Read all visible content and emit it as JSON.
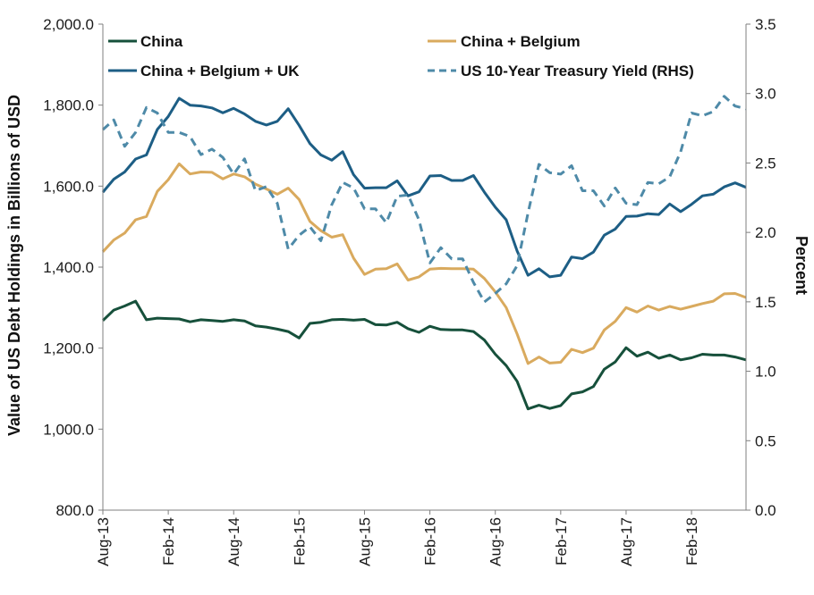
{
  "chart_data": {
    "type": "line",
    "x": [
      "Aug-13",
      "Sep-13",
      "Oct-13",
      "Nov-13",
      "Dec-13",
      "Jan-14",
      "Feb-14",
      "Mar-14",
      "Apr-14",
      "May-14",
      "Jun-14",
      "Jul-14",
      "Aug-14",
      "Sep-14",
      "Oct-14",
      "Nov-14",
      "Dec-14",
      "Jan-15",
      "Feb-15",
      "Mar-15",
      "Apr-15",
      "May-15",
      "Jun-15",
      "Jul-15",
      "Aug-15",
      "Sep-15",
      "Oct-15",
      "Nov-15",
      "Dec-15",
      "Jan-16",
      "Feb-16",
      "Mar-16",
      "Apr-16",
      "May-16",
      "Jun-16",
      "Jul-16",
      "Aug-16",
      "Sep-16",
      "Oct-16",
      "Nov-16",
      "Dec-16",
      "Jan-17",
      "Feb-17",
      "Mar-17",
      "Apr-17",
      "May-17",
      "Jun-17",
      "Jul-17",
      "Aug-17",
      "Sep-17",
      "Oct-17",
      "Nov-17",
      "Dec-17",
      "Jan-18",
      "Feb-18",
      "Mar-18",
      "Apr-18",
      "May-18",
      "Jun-18",
      "Jul-18"
    ],
    "x_tick_labels": [
      "Aug-13",
      "Feb-14",
      "Aug-14",
      "Feb-15",
      "Aug-15",
      "Feb-16",
      "Aug-16",
      "Feb-17",
      "Aug-17",
      "Feb-18"
    ],
    "ylabel": "Value of US Debt Holdings in Billions of USD",
    "y2label": "Percent",
    "ylim": [
      800,
      2000
    ],
    "y2lim": [
      0,
      3.5
    ],
    "y_tick_labels": [
      "800.0",
      "1,000.0",
      "1,200.0",
      "1,400.0",
      "1,600.0",
      "1,800.0",
      "2,000.0"
    ],
    "y2_tick_labels": [
      "0.0",
      "0.5",
      "1.0",
      "1.5",
      "2.0",
      "2.5",
      "3.0",
      "3.5"
    ],
    "grid": false,
    "legend_position": "top",
    "series": [
      {
        "name": "China",
        "axis": "left",
        "color": "#16503b",
        "dash": "solid",
        "values": [
          1268,
          1294,
          1304,
          1316,
          1270,
          1274,
          1273,
          1272,
          1265,
          1270,
          1268,
          1266,
          1270,
          1267,
          1255,
          1252,
          1247,
          1241,
          1225,
          1261,
          1264,
          1270,
          1271,
          1269,
          1271,
          1258,
          1257,
          1264,
          1248,
          1239,
          1254,
          1246,
          1245,
          1245,
          1241,
          1220,
          1185,
          1157,
          1118,
          1050,
          1059,
          1051,
          1058,
          1087,
          1092,
          1105,
          1148,
          1166,
          1201,
          1180,
          1190,
          1175,
          1183,
          1171,
          1176,
          1185,
          1183,
          1183,
          1178,
          1171
        ]
      },
      {
        "name": "China + Belgium",
        "axis": "left",
        "color": "#d9aa5e",
        "dash": "solid",
        "values": [
          1438,
          1467,
          1484,
          1517,
          1525,
          1587,
          1616,
          1655,
          1630,
          1635,
          1634,
          1618,
          1630,
          1623,
          1605,
          1593,
          1580,
          1595,
          1567,
          1513,
          1490,
          1474,
          1480,
          1422,
          1382,
          1395,
          1396,
          1408,
          1368,
          1376,
          1395,
          1397,
          1396,
          1396,
          1395,
          1372,
          1339,
          1300,
          1235,
          1162,
          1178,
          1163,
          1165,
          1197,
          1189,
          1200,
          1245,
          1266,
          1300,
          1289,
          1304,
          1294,
          1303,
          1296,
          1303,
          1310,
          1316,
          1334,
          1335,
          1325
        ]
      },
      {
        "name": "China + Belgium + UK",
        "axis": "left",
        "color": "#1d5e85",
        "dash": "solid",
        "values": [
          1585,
          1617,
          1635,
          1667,
          1677,
          1740,
          1772,
          1817,
          1800,
          1798,
          1793,
          1781,
          1792,
          1778,
          1760,
          1751,
          1760,
          1791,
          1750,
          1705,
          1677,
          1664,
          1685,
          1628,
          1595,
          1596,
          1596,
          1613,
          1576,
          1586,
          1625,
          1626,
          1614,
          1614,
          1626,
          1585,
          1548,
          1517,
          1440,
          1380,
          1396,
          1376,
          1380,
          1425,
          1421,
          1437,
          1479,
          1494,
          1525,
          1526,
          1532,
          1530,
          1556,
          1537,
          1555,
          1576,
          1580,
          1598,
          1608,
          1597
        ]
      },
      {
        "name": "US 10-Year Treasury Yield (RHS)",
        "axis": "right",
        "color": "#4e8aa8",
        "dash": "dashed",
        "values": [
          2.74,
          2.81,
          2.62,
          2.72,
          2.9,
          2.86,
          2.72,
          2.72,
          2.69,
          2.56,
          2.6,
          2.54,
          2.42,
          2.53,
          2.3,
          2.33,
          2.21,
          1.88,
          1.98,
          2.04,
          1.94,
          2.2,
          2.36,
          2.32,
          2.17,
          2.17,
          2.07,
          2.26,
          2.27,
          2.09,
          1.78,
          1.89,
          1.81,
          1.81,
          1.64,
          1.5,
          1.56,
          1.63,
          1.76,
          2.14,
          2.49,
          2.43,
          2.42,
          2.48,
          2.3,
          2.3,
          2.19,
          2.32,
          2.21,
          2.2,
          2.36,
          2.35,
          2.4,
          2.58,
          2.86,
          2.84,
          2.87,
          2.98,
          2.91,
          2.89
        ]
      }
    ]
  }
}
